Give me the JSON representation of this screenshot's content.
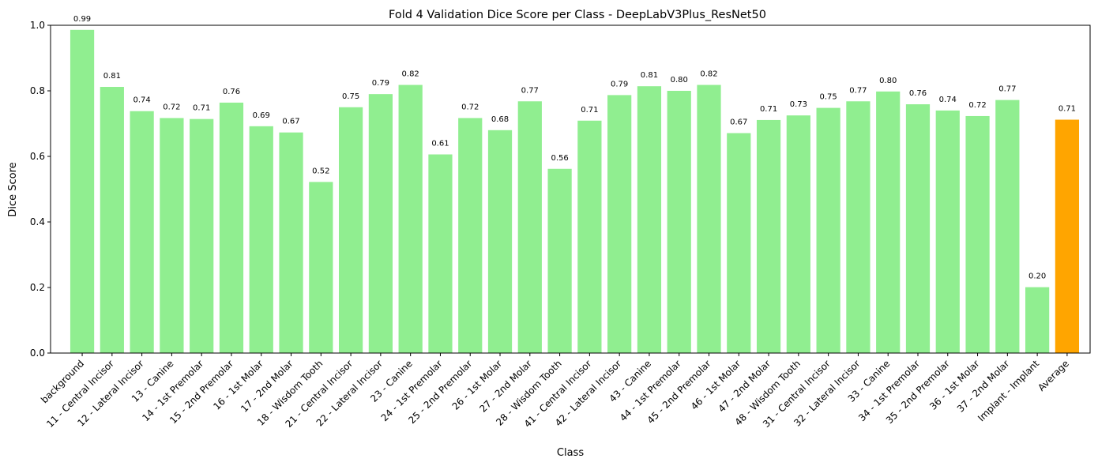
{
  "chart_data": {
    "type": "bar",
    "title": "Fold 4 Validation Dice Score per Class - DeepLabV3Plus_ResNet50",
    "xlabel": "Class",
    "ylabel": "Dice Score",
    "ylim": [
      0,
      1.0
    ],
    "yticks": [
      "0.0",
      "0.2",
      "0.4",
      "0.6",
      "0.8",
      "1.0"
    ],
    "grid": false,
    "legend": "none",
    "categories": [
      "background",
      "11 - Central Incisor",
      "12 - Lateral Incisor",
      "13 - Canine",
      "14 - 1st Premolar",
      "15 - 2nd Premolar",
      "16 - 1st Molar",
      "17 - 2nd Molar",
      "18 - Wisdom Tooth",
      "21 - Central Incisor",
      "22 - Lateral Incisor",
      "23 - Canine",
      "24 - 1st Premolar",
      "25 - 2nd Premolar",
      "26 - 1st Molar",
      "27 - 2nd Molar",
      "28 - Wisdom Tooth",
      "41 - Central Incisor",
      "42 - Lateral Incisor",
      "43 - Canine",
      "44 - 1st Premolar",
      "45 - 2nd Premolar",
      "46 - 1st Molar",
      "47 - 2nd Molar",
      "48 - Wisdom Tooth",
      "31 - Central Incisor",
      "32 - Lateral Incisor",
      "33 - Canine",
      "34 - 1st Premolar",
      "35 - 2nd Premolar",
      "36 - 1st Molar",
      "37 - 2nd Molar",
      "Implant - Implant",
      "Average"
    ],
    "values": [
      0.986,
      0.812,
      0.738,
      0.717,
      0.714,
      0.764,
      0.692,
      0.673,
      0.522,
      0.75,
      0.79,
      0.818,
      0.606,
      0.717,
      0.68,
      0.768,
      0.562,
      0.709,
      0.787,
      0.814,
      0.8,
      0.818,
      0.671,
      0.711,
      0.725,
      0.748,
      0.768,
      0.798,
      0.759,
      0.74,
      0.723,
      0.772,
      0.201,
      0.712
    ],
    "labels": [
      "0.99",
      "0.81",
      "0.74",
      "0.72",
      "0.71",
      "0.76",
      "0.69",
      "0.67",
      "0.52",
      "0.75",
      "0.79",
      "0.82",
      "0.61",
      "0.72",
      "0.68",
      "0.77",
      "0.56",
      "0.71",
      "0.79",
      "0.81",
      "0.80",
      "0.82",
      "0.67",
      "0.71",
      "0.73",
      "0.75",
      "0.77",
      "0.80",
      "0.76",
      "0.74",
      "0.72",
      "0.77",
      "0.20",
      "0.71"
    ],
    "colors": {
      "bar": "#90ee90",
      "highlight": "#ffa500",
      "highlight_category": "Average"
    }
  }
}
